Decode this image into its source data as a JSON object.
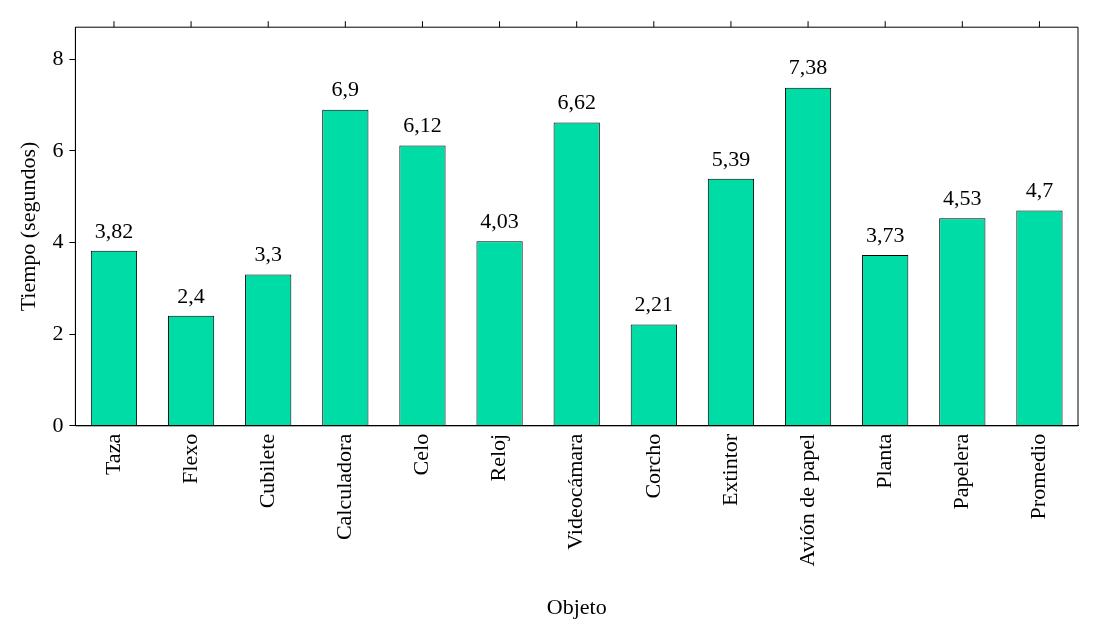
{
  "chart_data": {
    "type": "bar",
    "xlabel": "Objeto",
    "ylabel": "Tiempo (segundos)",
    "categories": [
      "Taza",
      "Flexo",
      "Cubilete",
      "Calculadora",
      "Celo",
      "Reloj",
      "Videocámara",
      "Corcho",
      "Extintor",
      "Avión de papel",
      "Planta",
      "Papelera",
      "Promedio"
    ],
    "values": [
      3.82,
      2.4,
      3.3,
      6.9,
      6.12,
      4.03,
      6.62,
      2.21,
      5.39,
      7.38,
      3.73,
      4.53,
      4.7
    ],
    "value_labels": [
      "3,82",
      "2,4",
      "3,3",
      "6,9",
      "6,12",
      "4,03",
      "6,62",
      "2,21",
      "5,39",
      "7,38",
      "3,73",
      "4,53",
      "4,7"
    ],
    "color": "#00dca6",
    "ylim": [
      0,
      8.7
    ],
    "yticks": [
      0,
      2,
      4,
      6,
      8
    ],
    "grid": false,
    "legend": false
  }
}
